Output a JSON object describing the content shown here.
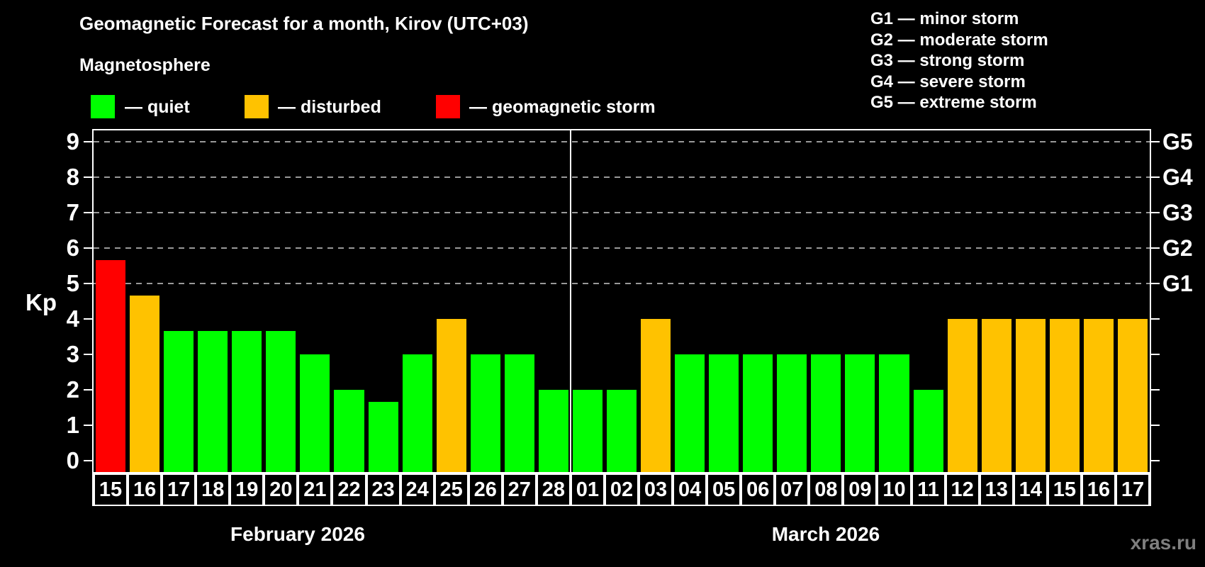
{
  "title": "Geomagnetic Forecast for a month, Kirov (UTC+03)",
  "subtitle": "Magnetosphere",
  "legend": {
    "items": [
      {
        "key": "quiet",
        "label": "— quiet"
      },
      {
        "key": "disturbed",
        "label": "— disturbed"
      },
      {
        "key": "storm",
        "label": "— geomagnetic storm"
      }
    ]
  },
  "storm_legend": [
    "G1 — minor storm",
    "G2 — moderate storm",
    "G3 — strong storm",
    "G4 — severe storm",
    "G5 — extreme storm"
  ],
  "y_axis": {
    "label": "Kp",
    "ticks": [
      "0",
      "1",
      "2",
      "3",
      "4",
      "5",
      "6",
      "7",
      "8",
      "9"
    ]
  },
  "right_axis": {
    "labels": [
      {
        "text": "G1",
        "kp": 5
      },
      {
        "text": "G2",
        "kp": 6
      },
      {
        "text": "G3",
        "kp": 7
      },
      {
        "text": "G4",
        "kp": 8
      },
      {
        "text": "G5",
        "kp": 9
      }
    ]
  },
  "months": [
    {
      "label": "February 2026",
      "days": 14
    },
    {
      "label": "March 2026",
      "days": 17
    }
  ],
  "watermark": "xras.ru",
  "colors": {
    "quiet": "#00ff00",
    "disturbed": "#ffc200",
    "storm": "#ff0000",
    "background": "#000000",
    "grid": "#999999",
    "text": "#ffffff",
    "watermark": "#7f7f7f"
  },
  "chart_data": {
    "type": "bar",
    "title": "Geomagnetic Forecast for a month, Kirov (UTC+03)",
    "xlabel": "",
    "ylabel": "Kp",
    "ylim": [
      0,
      9.4
    ],
    "grid_levels": [
      5,
      6,
      7,
      8,
      9
    ],
    "legend_position": "top",
    "categories": [
      "15",
      "16",
      "17",
      "18",
      "19",
      "20",
      "21",
      "22",
      "23",
      "24",
      "25",
      "26",
      "27",
      "28",
      "01",
      "02",
      "03",
      "04",
      "05",
      "06",
      "07",
      "08",
      "09",
      "10",
      "11",
      "12",
      "13",
      "14",
      "15",
      "16",
      "17"
    ],
    "series": [
      {
        "name": "Kp forecast",
        "values": [
          5.67,
          4.67,
          3.67,
          3.67,
          3.67,
          3.67,
          3,
          2,
          1.67,
          3,
          4,
          3,
          3,
          2,
          2,
          2,
          4,
          3,
          3,
          3,
          3,
          3,
          3,
          3,
          2,
          4,
          4,
          4,
          4,
          4,
          4
        ]
      }
    ],
    "bars": [
      {
        "date": "15",
        "month": "February 2026",
        "kp": 5.67,
        "status": "storm"
      },
      {
        "date": "16",
        "month": "February 2026",
        "kp": 4.67,
        "status": "disturbed"
      },
      {
        "date": "17",
        "month": "February 2026",
        "kp": 3.67,
        "status": "quiet"
      },
      {
        "date": "18",
        "month": "February 2026",
        "kp": 3.67,
        "status": "quiet"
      },
      {
        "date": "19",
        "month": "February 2026",
        "kp": 3.67,
        "status": "quiet"
      },
      {
        "date": "20",
        "month": "February 2026",
        "kp": 3.67,
        "status": "quiet"
      },
      {
        "date": "21",
        "month": "February 2026",
        "kp": 3,
        "status": "quiet"
      },
      {
        "date": "22",
        "month": "February 2026",
        "kp": 2,
        "status": "quiet"
      },
      {
        "date": "23",
        "month": "February 2026",
        "kp": 1.67,
        "status": "quiet"
      },
      {
        "date": "24",
        "month": "February 2026",
        "kp": 3,
        "status": "quiet"
      },
      {
        "date": "25",
        "month": "February 2026",
        "kp": 4,
        "status": "disturbed"
      },
      {
        "date": "26",
        "month": "February 2026",
        "kp": 3,
        "status": "quiet"
      },
      {
        "date": "27",
        "month": "February 2026",
        "kp": 3,
        "status": "quiet"
      },
      {
        "date": "28",
        "month": "February 2026",
        "kp": 2,
        "status": "quiet"
      },
      {
        "date": "01",
        "month": "March 2026",
        "kp": 2,
        "status": "quiet"
      },
      {
        "date": "02",
        "month": "March 2026",
        "kp": 2,
        "status": "quiet"
      },
      {
        "date": "03",
        "month": "March 2026",
        "kp": 4,
        "status": "disturbed"
      },
      {
        "date": "04",
        "month": "March 2026",
        "kp": 3,
        "status": "quiet"
      },
      {
        "date": "05",
        "month": "March 2026",
        "kp": 3,
        "status": "quiet"
      },
      {
        "date": "06",
        "month": "March 2026",
        "kp": 3,
        "status": "quiet"
      },
      {
        "date": "07",
        "month": "March 2026",
        "kp": 3,
        "status": "quiet"
      },
      {
        "date": "08",
        "month": "March 2026",
        "kp": 3,
        "status": "quiet"
      },
      {
        "date": "09",
        "month": "March 2026",
        "kp": 3,
        "status": "quiet"
      },
      {
        "date": "10",
        "month": "March 2026",
        "kp": 3,
        "status": "quiet"
      },
      {
        "date": "11",
        "month": "March 2026",
        "kp": 2,
        "status": "quiet"
      },
      {
        "date": "12",
        "month": "March 2026",
        "kp": 4,
        "status": "disturbed"
      },
      {
        "date": "13",
        "month": "March 2026",
        "kp": 4,
        "status": "disturbed"
      },
      {
        "date": "14",
        "month": "March 2026",
        "kp": 4,
        "status": "disturbed"
      },
      {
        "date": "15",
        "month": "March 2026",
        "kp": 4,
        "status": "disturbed"
      },
      {
        "date": "16",
        "month": "March 2026",
        "kp": 4,
        "status": "disturbed"
      },
      {
        "date": "17",
        "month": "March 2026",
        "kp": 4,
        "status": "disturbed"
      }
    ]
  }
}
